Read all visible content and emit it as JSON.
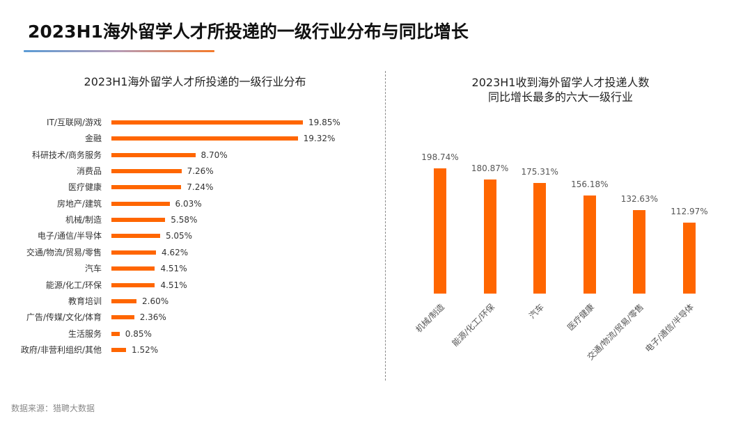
{
  "header": {
    "title": "2023H1海外留学人才所投递的一级行业分布与同比增长"
  },
  "colors": {
    "bar": "#ff6600",
    "underline_start": "#5b9bd5",
    "underline_end": "#f47a2a",
    "divider": "#8a8a8a"
  },
  "footer": {
    "source": "数据来源：猎聘大数据"
  },
  "chart_data": [
    {
      "type": "bar",
      "orientation": "horizontal",
      "title": "2023H1海外留学人才所投递的一级行业分布",
      "xlabel": "",
      "ylabel": "",
      "unit": "%",
      "xlim": [
        0,
        19.85
      ],
      "grid": false,
      "categories": [
        "IT/互联网/游戏",
        "金融",
        "科研技术/商务服务",
        "消费品",
        "医疗健康",
        "房地产/建筑",
        "机械/制造",
        "电子/通信/半导体",
        "交通/物流/贸易/零售",
        "汽车",
        "能源/化工/环保",
        "教育培训",
        "广告/传媒/文化/体育",
        "生活服务",
        "政府/非营利组织/其他"
      ],
      "values": [
        19.85,
        19.32,
        8.7,
        7.26,
        7.24,
        6.03,
        5.58,
        5.05,
        4.62,
        4.51,
        4.51,
        2.6,
        2.36,
        0.85,
        1.52
      ],
      "labels": [
        "19.85%",
        "19.32%",
        "8.70%",
        "7.26%",
        "7.24%",
        "6.03%",
        "5.58%",
        "5.05%",
        "4.62%",
        "4.51%",
        "4.51%",
        "2.60%",
        "2.36%",
        "0.85%",
        "1.52%"
      ]
    },
    {
      "type": "bar",
      "orientation": "vertical",
      "title_lines": [
        "2023H1收到海外留学人才投递人数",
        "同比增长最多的六大一级行业"
      ],
      "xlabel": "",
      "ylabel": "",
      "unit": "%",
      "ylim": [
        0,
        198.74
      ],
      "grid": false,
      "categories": [
        "机械/制造",
        "能源/化工/环保",
        "汽车",
        "医疗健康",
        "交通/物流/贸易/零售",
        "电子/通信/半导体"
      ],
      "values": [
        198.74,
        180.87,
        175.31,
        156.18,
        132.63,
        112.97
      ],
      "labels": [
        "198.74%",
        "180.87%",
        "175.31%",
        "156.18%",
        "132.63%",
        "112.97%"
      ]
    }
  ]
}
